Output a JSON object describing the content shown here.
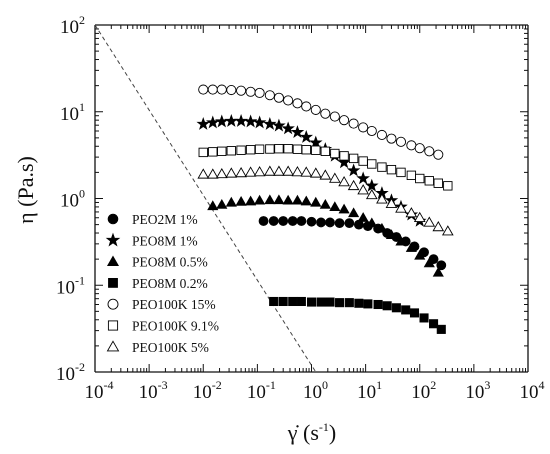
{
  "chart_data": {
    "type": "scatter",
    "x_scale": "log",
    "y_scale": "log",
    "xlim": [
      0.0001,
      10000
    ],
    "ylim": [
      0.01,
      100
    ],
    "x_ticks": [
      {
        "base": "10",
        "exp": "-4"
      },
      {
        "base": "10",
        "exp": "-3"
      },
      {
        "base": "10",
        "exp": "-2"
      },
      {
        "base": "10",
        "exp": "-1"
      },
      {
        "base": "10",
        "exp": "0"
      },
      {
        "base": "10",
        "exp": "1"
      },
      {
        "base": "10",
        "exp": "2"
      },
      {
        "base": "10",
        "exp": "3"
      },
      {
        "base": "10",
        "exp": "4"
      }
    ],
    "y_ticks": [
      {
        "base": "10",
        "exp": "-2"
      },
      {
        "base": "10",
        "exp": "-1"
      },
      {
        "base": "10",
        "exp": "0"
      },
      {
        "base": "10",
        "exp": "1"
      },
      {
        "base": "10",
        "exp": "2"
      }
    ],
    "xlabel": {
      "main": "γ̇ (s",
      "exp": "-1",
      "close": ")"
    },
    "ylabel": "η (Pa.s)",
    "grid": false,
    "legend_position": "bottom-left",
    "reference_line": {
      "style": "dashed",
      "x": [
        0.0001,
        1.2
      ],
      "y": [
        100,
        0.01
      ]
    },
    "series": [
      {
        "name": "PEO2M 1%",
        "marker": "circle-filled",
        "x": [
          0.13,
          0.2,
          0.3,
          0.45,
          0.65,
          1,
          1.5,
          2.2,
          3.3,
          5,
          7.5,
          11,
          17,
          25,
          37,
          55,
          80,
          120,
          180,
          250
        ],
        "y": [
          0.55,
          0.55,
          0.55,
          0.55,
          0.55,
          0.54,
          0.53,
          0.53,
          0.52,
          0.52,
          0.5,
          0.48,
          0.45,
          0.4,
          0.36,
          0.32,
          0.28,
          0.24,
          0.2,
          0.17
        ]
      },
      {
        "name": "PEO8M 1%",
        "marker": "star-filled",
        "x": [
          0.01,
          0.015,
          0.022,
          0.033,
          0.05,
          0.075,
          0.11,
          0.17,
          0.25,
          0.37,
          0.55,
          0.8,
          1.2,
          1.8,
          2.7,
          4,
          6,
          9,
          13,
          20,
          30,
          45,
          70,
          100
        ],
        "y": [
          7.2,
          7.5,
          7.7,
          7.8,
          7.8,
          7.7,
          7.5,
          7.2,
          6.9,
          6.4,
          5.8,
          5.1,
          4.4,
          3.7,
          3.1,
          2.6,
          2.1,
          1.7,
          1.4,
          1.15,
          0.95,
          0.8,
          0.65,
          0.55
        ]
      },
      {
        "name": "PEO8M 0.5%",
        "marker": "triangle-filled",
        "x": [
          0.015,
          0.022,
          0.033,
          0.05,
          0.075,
          0.11,
          0.17,
          0.25,
          0.37,
          0.55,
          0.8,
          1.2,
          1.8,
          2.7,
          4,
          6,
          9,
          13,
          20,
          30,
          45,
          70,
          100,
          150,
          220
        ],
        "y": [
          0.82,
          0.85,
          0.9,
          0.92,
          0.93,
          0.95,
          0.96,
          0.96,
          0.95,
          0.95,
          0.93,
          0.9,
          0.85,
          0.8,
          0.75,
          0.68,
          0.6,
          0.52,
          0.45,
          0.38,
          0.32,
          0.27,
          0.22,
          0.18,
          0.14
        ]
      },
      {
        "name": "PEO8M 0.2%",
        "marker": "square-filled",
        "x": [
          0.2,
          0.3,
          0.45,
          0.65,
          1,
          1.5,
          2.2,
          3.3,
          5,
          7.5,
          11,
          17,
          25,
          37,
          55,
          80,
          120,
          180,
          250
        ],
        "y": [
          0.065,
          0.065,
          0.065,
          0.065,
          0.064,
          0.064,
          0.064,
          0.063,
          0.063,
          0.062,
          0.061,
          0.06,
          0.058,
          0.055,
          0.052,
          0.048,
          0.042,
          0.036,
          0.031
        ]
      },
      {
        "name": "PEO100K 15%",
        "marker": "circle-open",
        "x": [
          0.01,
          0.015,
          0.022,
          0.033,
          0.05,
          0.075,
          0.11,
          0.17,
          0.25,
          0.37,
          0.55,
          0.8,
          1.2,
          1.8,
          2.7,
          4,
          6,
          9,
          13,
          20,
          30,
          45,
          70,
          100,
          150,
          220
        ],
        "y": [
          18,
          18,
          18,
          17.8,
          17.5,
          17,
          16.5,
          15.5,
          14.5,
          13.5,
          12.5,
          11.5,
          10.5,
          9.5,
          8.8,
          8,
          7.3,
          6.6,
          6,
          5.4,
          4.9,
          4.5,
          4.1,
          3.8,
          3.5,
          3.2
        ]
      },
      {
        "name": "PEO100K 9.1%",
        "marker": "square-open",
        "x": [
          0.01,
          0.015,
          0.022,
          0.033,
          0.05,
          0.075,
          0.11,
          0.17,
          0.25,
          0.37,
          0.55,
          0.8,
          1.2,
          1.8,
          2.7,
          4,
          6,
          9,
          13,
          20,
          30,
          45,
          70,
          100,
          150,
          220,
          330
        ],
        "y": [
          3.4,
          3.45,
          3.5,
          3.55,
          3.6,
          3.65,
          3.7,
          3.72,
          3.75,
          3.75,
          3.7,
          3.65,
          3.6,
          3.5,
          3.3,
          3.1,
          2.9,
          2.7,
          2.5,
          2.3,
          2.15,
          2,
          1.85,
          1.7,
          1.6,
          1.5,
          1.4
        ]
      },
      {
        "name": "PEO100K 5%",
        "marker": "triangle-open",
        "x": [
          0.01,
          0.015,
          0.022,
          0.033,
          0.05,
          0.075,
          0.11,
          0.17,
          0.25,
          0.37,
          0.55,
          0.8,
          1.2,
          1.8,
          2.7,
          4,
          6,
          9,
          13,
          20,
          30,
          45,
          70,
          100,
          150,
          220,
          330
        ],
        "y": [
          1.9,
          1.9,
          1.92,
          1.95,
          1.97,
          2,
          2.02,
          2.05,
          2.05,
          2.05,
          2.02,
          2,
          1.95,
          1.85,
          1.7,
          1.55,
          1.4,
          1.25,
          1.1,
          0.98,
          0.87,
          0.77,
          0.68,
          0.6,
          0.53,
          0.47,
          0.42
        ]
      }
    ]
  }
}
